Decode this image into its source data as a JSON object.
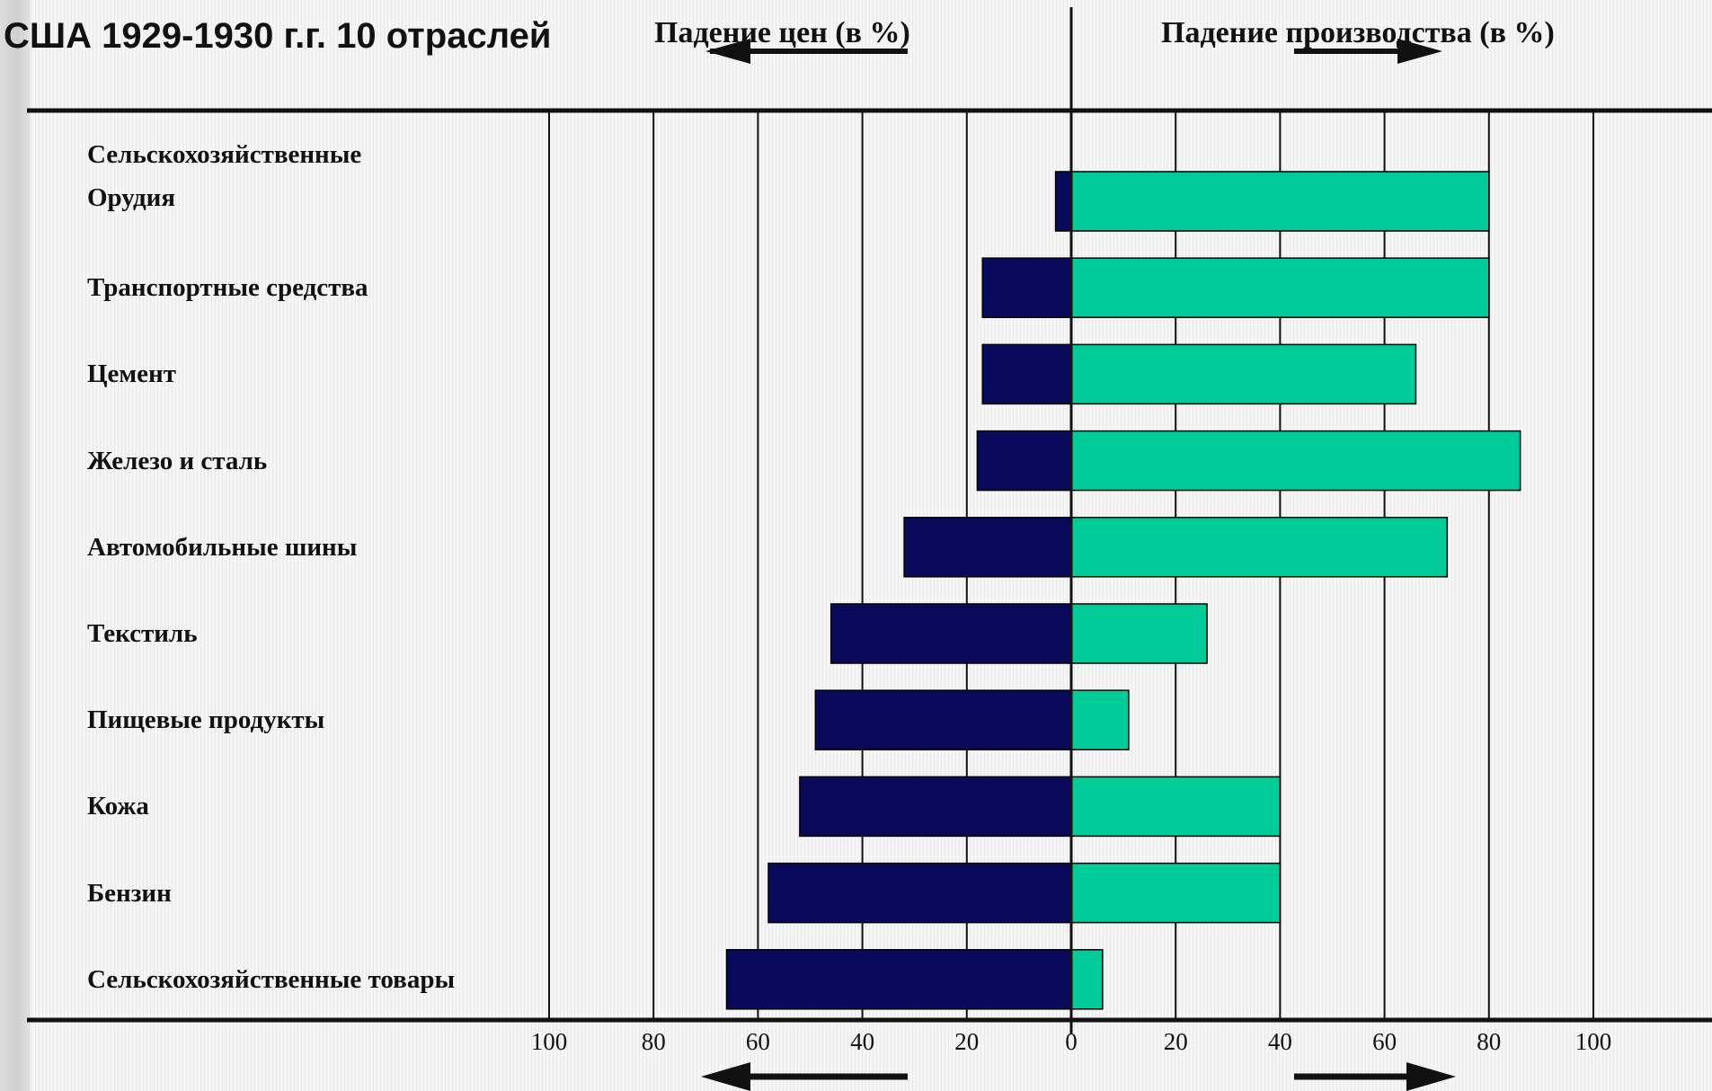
{
  "chart_data": {
    "type": "bar",
    "title": "США 1929-1930 г.г. 10 отраслей",
    "left_header": "Падение цен (в %)",
    "right_header": "Падение производства (в %)",
    "categories": [
      "Сельскохозяйственные Орудия",
      "Транспортные средства",
      "Цемент",
      "Железо и сталь",
      "Автомобильные шины",
      "Текстиль",
      "Пищевые продукты",
      "Кожа",
      "Бензин",
      "Сельскохозяйственные товары"
    ],
    "category_label_lines": [
      [
        "Сельскохозяйственные",
        "Орудия"
      ],
      [
        "Транспортные средства"
      ],
      [
        "Цемент"
      ],
      [
        "Железо и сталь"
      ],
      [
        "Автомобильные шины"
      ],
      [
        "Текстиль"
      ],
      [
        "Пищевые продукты"
      ],
      [
        "Кожа"
      ],
      [
        "Бензин"
      ],
      [
        "Сельскохозяйственные товары"
      ]
    ],
    "series": [
      {
        "key": "price_drop",
        "side": "left",
        "color": "#0a0a5c",
        "values": [
          3,
          17,
          17,
          18,
          32,
          46,
          49,
          52,
          58,
          66
        ]
      },
      {
        "key": "production_drop",
        "side": "right",
        "color": "#00cc99",
        "values": [
          80,
          80,
          66,
          86,
          72,
          26,
          11,
          40,
          40,
          6
        ]
      }
    ],
    "xlim": [
      -100,
      100
    ],
    "x_ticks": [
      -100,
      -80,
      -60,
      -40,
      -20,
      0,
      20,
      40,
      60,
      80,
      100
    ],
    "x_tick_labels": [
      "100",
      "80",
      "60",
      "40",
      "20",
      "0",
      "20",
      "40",
      "60",
      "80",
      "100"
    ],
    "grid": true
  }
}
